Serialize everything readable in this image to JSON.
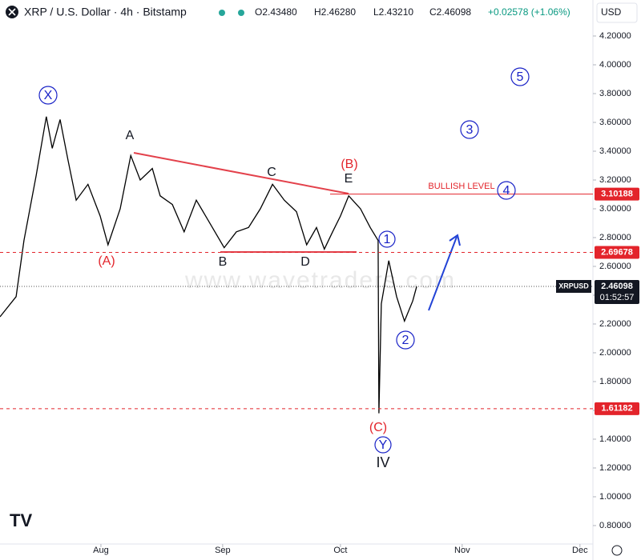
{
  "chart_data": {
    "type": "line",
    "header": {
      "symbol": "XRP / U.S. Dollar · 4h · Bitstamp",
      "open": "O2.43480",
      "high": "H2.46280",
      "low": "L2.43210",
      "close": "C2.46098",
      "change": "+0.02578 (+1.06%)"
    },
    "currency": "USD",
    "watermark": "www.wavetraders.com",
    "x": [
      5.3,
      9.4,
      11.4,
      14.5,
      17.1,
      18.6,
      20.6,
      22.6,
      24.7,
      27.7,
      30.8,
      32.8,
      35.9,
      38.6,
      41,
      44.1,
      46.1,
      49.2,
      52.2,
      55.3,
      59.4,
      62.4,
      65.5,
      68.6,
      71.6,
      74.7,
      77.7,
      80.8,
      83.4,
      85.9,
      87.9,
      90,
      92,
      94.1,
      97.1,
      99.6,
      101.6,
      101.8,
      102.4,
      104.3,
      106.3,
      108.3,
      110.4,
      111.4
    ],
    "series": [
      {
        "name": "XRPUSD",
        "color": "#000000",
        "values": [
          2.25,
          2.39,
          2.78,
          3.23,
          3.64,
          3.42,
          3.62,
          3.34,
          3.06,
          3.17,
          2.95,
          2.75,
          3.0,
          3.37,
          3.2,
          3.28,
          3.09,
          3.03,
          2.84,
          3.06,
          2.87,
          2.73,
          2.84,
          2.87,
          3.0,
          3.17,
          3.06,
          2.98,
          2.75,
          2.87,
          2.72,
          2.84,
          2.95,
          3.09,
          3.0,
          2.87,
          2.78,
          1.58,
          2.34,
          2.64,
          2.39,
          2.22,
          2.36,
          2.46
        ]
      }
    ],
    "xlim": [
      5.3,
      156.3
    ],
    "xticks": [
      {
        "value": 31,
        "label": "Aug"
      },
      {
        "value": 62,
        "label": "Sep"
      },
      {
        "value": 92,
        "label": "Oct"
      },
      {
        "value": 123,
        "label": "Nov"
      },
      {
        "value": 153,
        "label": "Dec"
      }
    ],
    "ylim": [
      0.672,
      4.45
    ],
    "yticks": [
      {
        "value": 0.8,
        "label": "0.80000"
      },
      {
        "value": 1.0,
        "label": "1.00000"
      },
      {
        "value": 1.2,
        "label": "1.20000"
      },
      {
        "value": 1.4,
        "label": "1.40000"
      },
      {
        "value": 1.6,
        "label": "1.60000"
      },
      {
        "value": 1.8,
        "label": "1.80000"
      },
      {
        "value": 2.0,
        "label": "2.00000"
      },
      {
        "value": 2.2,
        "label": "2.20000"
      },
      {
        "value": 2.4,
        "label": "2.40000"
      },
      {
        "value": 2.6,
        "label": "2.60000"
      },
      {
        "value": 2.8,
        "label": "2.80000"
      },
      {
        "value": 3.0,
        "label": "3.00000"
      },
      {
        "value": 3.2,
        "label": "3.20000"
      },
      {
        "value": 3.4,
        "label": "3.40000"
      },
      {
        "value": 3.6,
        "label": "3.60000"
      },
      {
        "value": 3.8,
        "label": "3.80000"
      },
      {
        "value": 4.0,
        "label": "4.00000"
      },
      {
        "value": 4.2,
        "label": "4.20000"
      }
    ],
    "levels": [
      3.10188,
      2.69678,
      1.61182
    ],
    "level_color": "#e3242b",
    "last_price": 2.46098,
    "countdown": "01:52:57",
    "annotations": [
      "X",
      "A",
      "(A)",
      "B",
      "C",
      "D",
      "E",
      "(B)",
      "1",
      "2",
      "3",
      "4",
      "5",
      "(C)",
      "Y",
      "IV",
      "BULLISH LEVEL"
    ]
  }
}
